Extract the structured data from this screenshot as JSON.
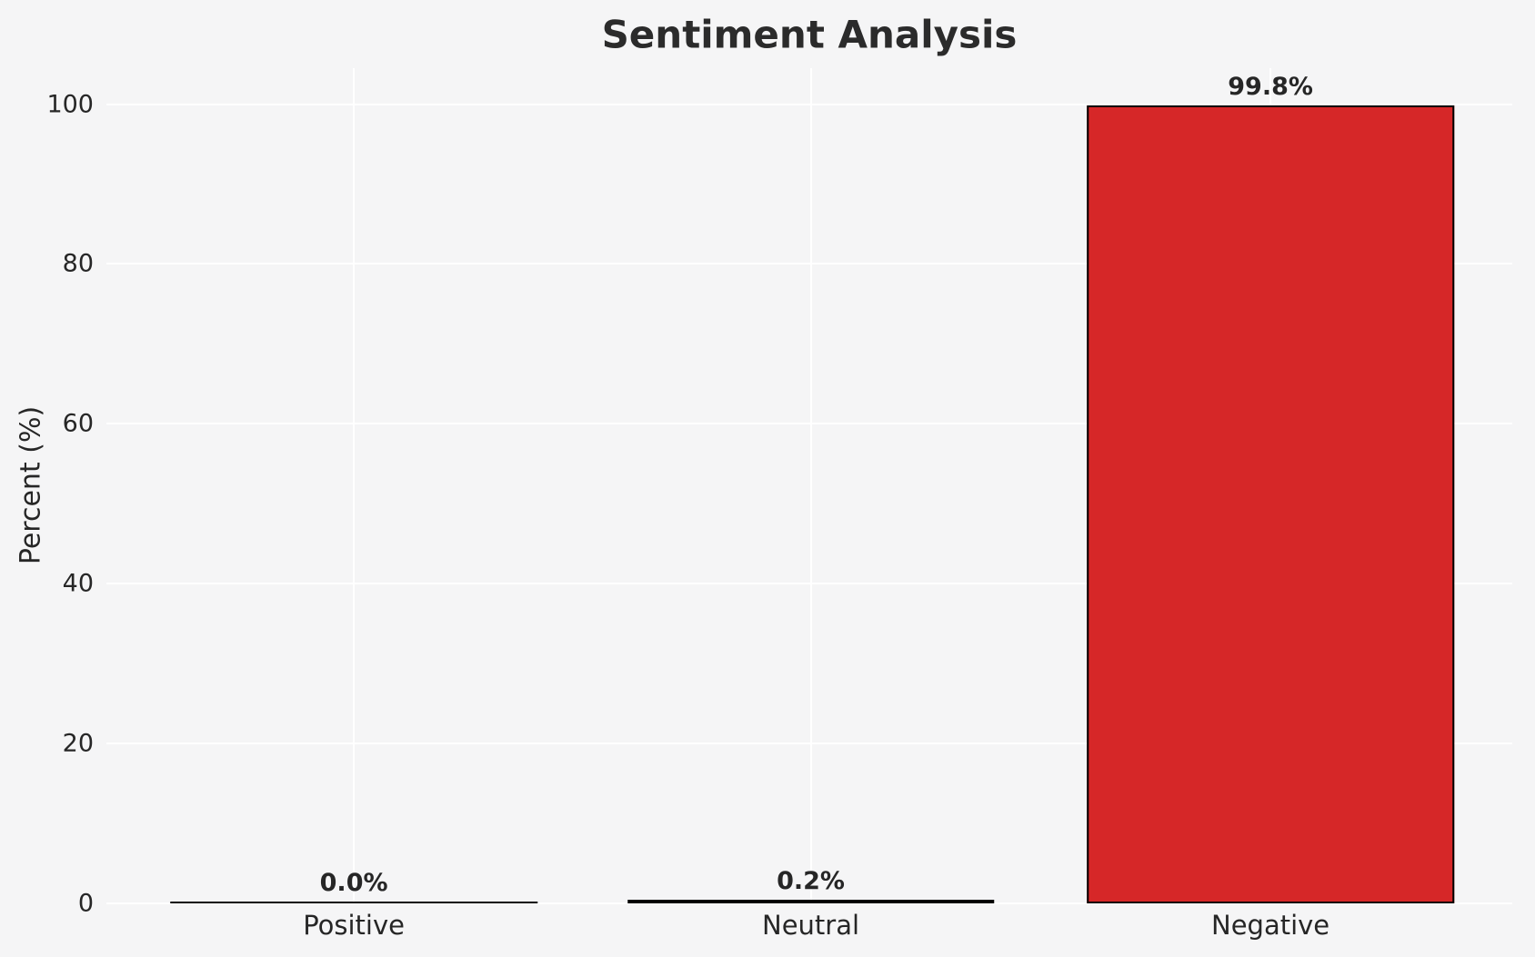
{
  "chart_data": {
    "type": "bar",
    "title": "Sentiment Analysis",
    "ylabel": "Percent (%)",
    "xlabel": "",
    "categories": [
      "Positive",
      "Neutral",
      "Negative"
    ],
    "values": [
      0.0,
      0.2,
      99.8
    ],
    "value_labels": [
      "0.0%",
      "0.2%",
      "99.8%"
    ],
    "yticks": [
      0,
      20,
      40,
      60,
      80,
      100
    ],
    "ytick_labels": [
      "0",
      "20",
      "40",
      "60",
      "80",
      "100"
    ],
    "ylim": [
      0,
      100
    ],
    "grid": true,
    "legend": "none",
    "colors": {
      "bar_fill": "#d62728",
      "bar_edge": "#000000",
      "background": "#f5f5f6",
      "gridline": "#ffffff",
      "text": "#262626"
    }
  }
}
